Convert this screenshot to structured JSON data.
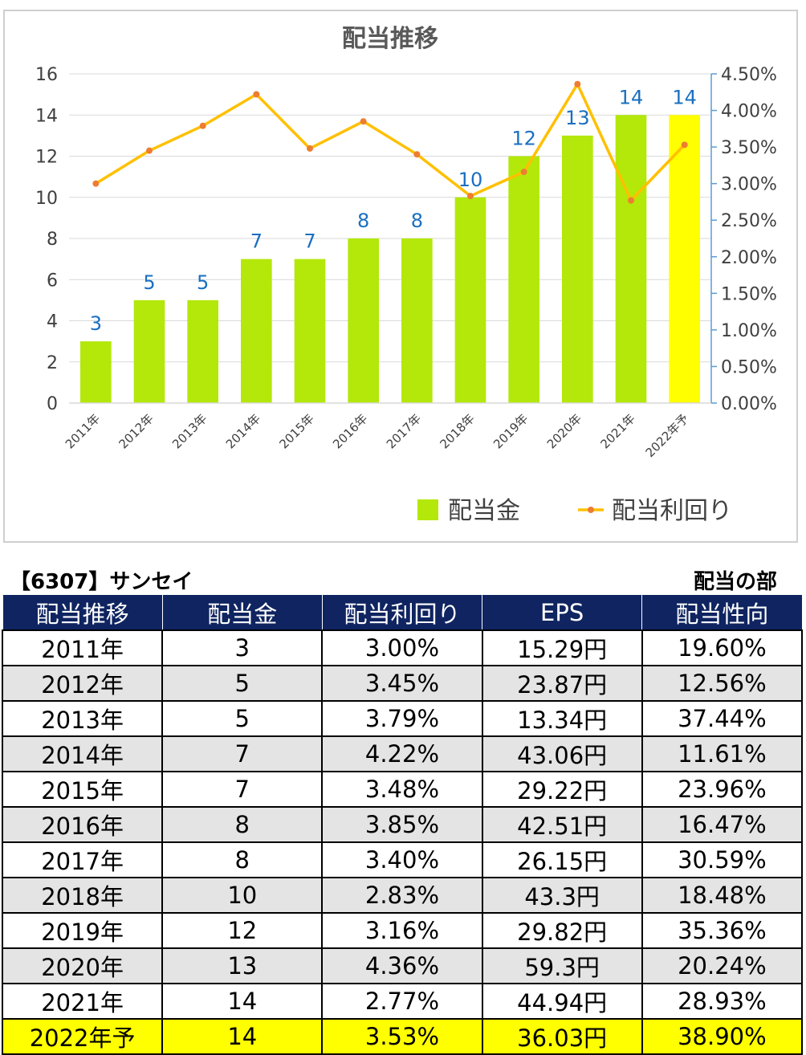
{
  "chart_data": {
    "type": "bar",
    "title": "配当推移",
    "categories": [
      "2011年",
      "2012年",
      "2013年",
      "2014年",
      "2015年",
      "2016年",
      "2017年",
      "2018年",
      "2019年",
      "2020年",
      "2021年",
      "2022年予"
    ],
    "series": [
      {
        "name": "配当金",
        "type": "bar",
        "axis": "left",
        "color": "#b3e80a",
        "highlight_color": "#ffff00",
        "values": [
          3,
          5,
          5,
          7,
          7,
          8,
          8,
          10,
          12,
          13,
          14,
          14
        ]
      },
      {
        "name": "配当利回り",
        "type": "line",
        "axis": "right",
        "color": "#ffc000",
        "marker_color": "#ed7d31",
        "values": [
          3.0,
          3.45,
          3.79,
          4.22,
          3.48,
          3.85,
          3.4,
          2.83,
          3.16,
          4.36,
          2.77,
          3.53
        ]
      }
    ],
    "left_axis": {
      "min": 0,
      "max": 16,
      "ticks": [
        "0",
        "2",
        "4",
        "6",
        "8",
        "10",
        "12",
        "14",
        "16"
      ]
    },
    "right_axis": {
      "min": 0,
      "max": 4.5,
      "ticks": [
        "0.00%",
        "0.50%",
        "1.00%",
        "1.50%",
        "2.00%",
        "2.50%",
        "3.00%",
        "3.50%",
        "4.00%",
        "4.50%"
      ]
    },
    "data_labels": [
      "3",
      "5",
      "5",
      "7",
      "7",
      "8",
      "8",
      "10",
      "12",
      "13",
      "14",
      "14"
    ],
    "legend": [
      "配当金",
      "配当利回り"
    ],
    "legend_position": "bottom-right",
    "grid": true
  },
  "header": {
    "stock": "【6307】サンセイ",
    "section": "配当の部"
  },
  "table": {
    "columns": [
      "配当推移",
      "配当金",
      "配当利回り",
      "EPS",
      "配当性向"
    ],
    "rows": [
      [
        "2011年",
        "3",
        "3.00%",
        "15.29円",
        "19.60%"
      ],
      [
        "2012年",
        "5",
        "3.45%",
        "23.87円",
        "12.56%"
      ],
      [
        "2013年",
        "5",
        "3.79%",
        "13.34円",
        "37.44%"
      ],
      [
        "2014年",
        "7",
        "4.22%",
        "43.06円",
        "11.61%"
      ],
      [
        "2015年",
        "7",
        "3.48%",
        "29.22円",
        "23.96%"
      ],
      [
        "2016年",
        "8",
        "3.85%",
        "42.51円",
        "16.47%"
      ],
      [
        "2017年",
        "8",
        "3.40%",
        "26.15円",
        "30.59%"
      ],
      [
        "2018年",
        "10",
        "2.83%",
        "43.3円",
        "18.48%"
      ],
      [
        "2019年",
        "12",
        "3.16%",
        "29.82円",
        "35.36%"
      ],
      [
        "2020年",
        "13",
        "4.36%",
        "59.3円",
        "20.24%"
      ],
      [
        "2021年",
        "14",
        "2.77%",
        "44.94円",
        "28.93%"
      ],
      [
        "2022年予",
        "14",
        "3.53%",
        "36.03円",
        "38.90%"
      ]
    ]
  },
  "colors": {
    "header_bg": "#0f2460",
    "alt_row": "#e4e4e4",
    "highlight": "#ffff00",
    "label_blue": "#1a6fc0"
  }
}
